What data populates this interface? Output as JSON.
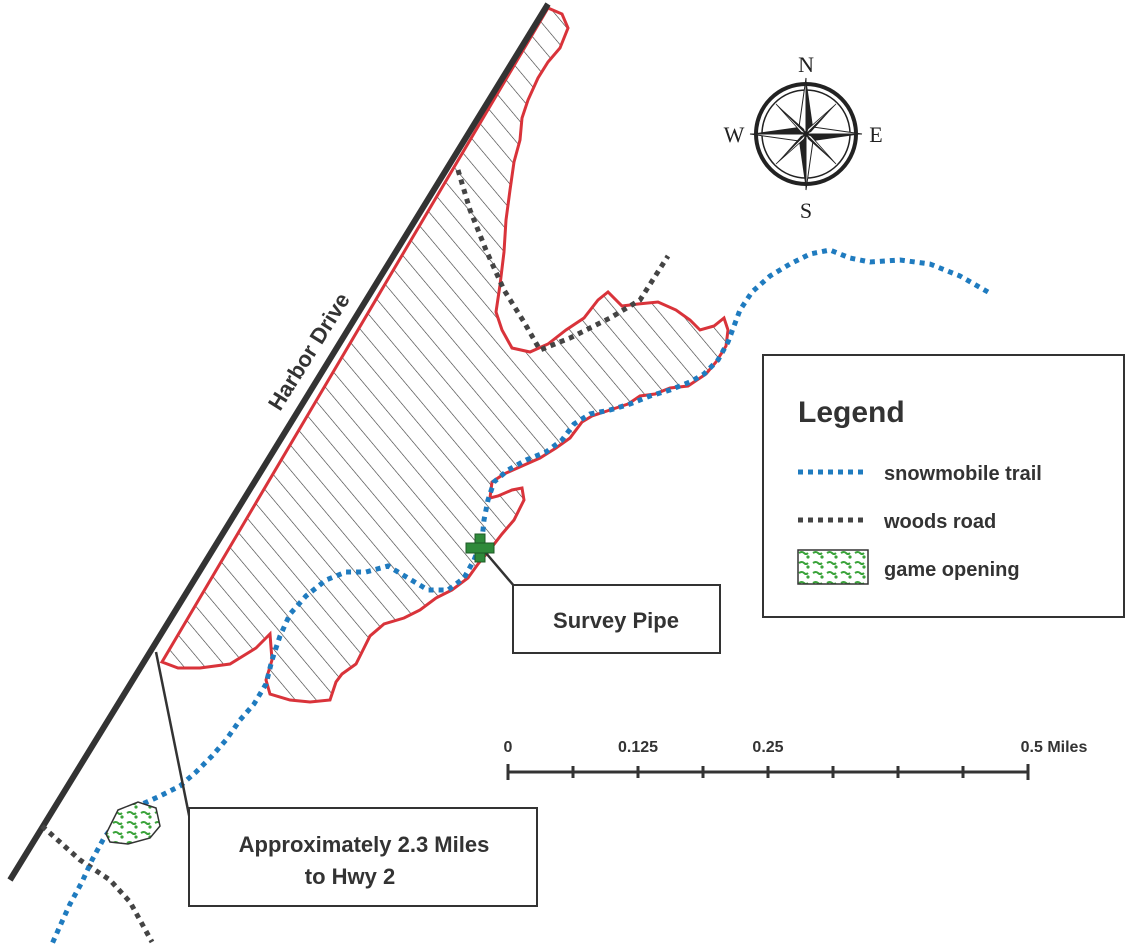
{
  "map": {
    "road_label": "Harbor Drive",
    "compass": {
      "n": "N",
      "s": "S",
      "e": "E",
      "w": "W"
    },
    "callouts": {
      "survey_pipe": "Survey Pipe",
      "hwy_line1": "Approximately 2.3 Miles",
      "hwy_line2": "to Hwy 2"
    },
    "scale_bar": {
      "labels": [
        "0",
        "0.125",
        "0.25",
        "0.5 Miles"
      ]
    },
    "legend": {
      "title": "Legend",
      "items": [
        {
          "label": "snowmobile trail",
          "symbol": "blue-dotted-line"
        },
        {
          "label": "woods road",
          "symbol": "dark-dotted-line"
        },
        {
          "label": "game opening",
          "symbol": "green-patch"
        }
      ]
    },
    "colors": {
      "parcel_outline": "#d9333a",
      "snowmobile_trail": "#1f7bbf",
      "woods_road": "#444444",
      "road": "#333333",
      "survey_marker": "#2f8a3a",
      "game_opening": "#3aa33a"
    }
  }
}
